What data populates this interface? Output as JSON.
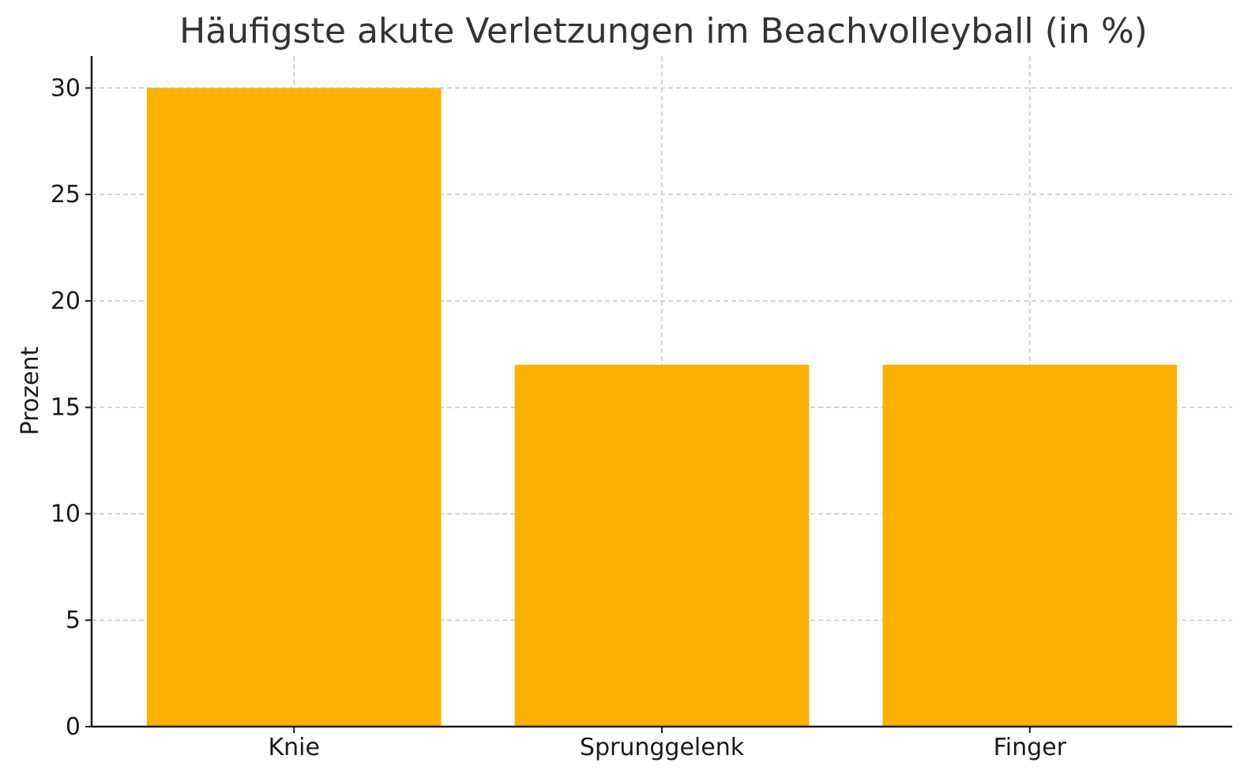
{
  "chart_data": {
    "type": "bar",
    "title": "Häufigste akute Verletzungen im Beachvolleyball (in %)",
    "xlabel": "",
    "ylabel": "Prozent",
    "categories": [
      "Knie",
      "Sprunggelenk",
      "Finger"
    ],
    "values": [
      30,
      17,
      17
    ],
    "ylim": [
      0,
      31.5
    ],
    "yticks": [
      "0",
      "5",
      "10",
      "15",
      "20",
      "25",
      "30"
    ],
    "grid": true,
    "bar_color": "#FFB000"
  }
}
